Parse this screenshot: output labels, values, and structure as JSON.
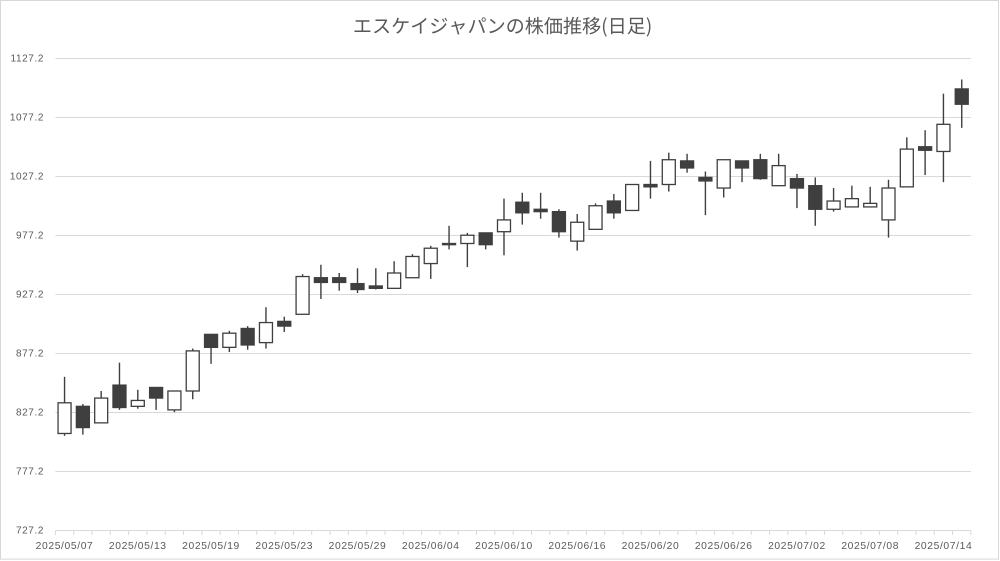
{
  "chart": {
    "title": "エスケイジャパンの株価推移(日足)"
  },
  "chart_data": {
    "type": "candlestick",
    "title": "エスケイジャパンの株価推移(日足)",
    "dates": [
      "2025/05/07",
      "2025/05/08",
      "2025/05/09",
      "2025/05/12",
      "2025/05/13",
      "2025/05/14",
      "2025/05/15",
      "2025/05/16",
      "2025/05/19",
      "2025/05/20",
      "2025/05/21",
      "2025/05/22",
      "2025/05/23",
      "2025/05/26",
      "2025/05/27",
      "2025/05/28",
      "2025/05/29",
      "2025/05/30",
      "2025/06/02",
      "2025/06/03",
      "2025/06/04",
      "2025/06/05",
      "2025/06/06",
      "2025/06/09",
      "2025/06/10",
      "2025/06/11",
      "2025/06/12",
      "2025/06/13",
      "2025/06/16",
      "2025/06/17",
      "2025/06/18",
      "2025/06/19",
      "2025/06/20",
      "2025/06/23",
      "2025/06/24",
      "2025/06/25",
      "2025/06/26",
      "2025/06/27",
      "2025/06/30",
      "2025/07/01",
      "2025/07/02",
      "2025/07/03",
      "2025/07/04",
      "2025/07/07",
      "2025/07/08",
      "2025/07/09",
      "2025/07/10",
      "2025/07/11",
      "2025/07/14",
      "2025/07/15"
    ],
    "open": [
      809,
      832,
      818,
      850,
      832,
      848,
      829,
      845,
      893,
      882,
      898,
      886,
      904,
      910,
      941,
      941,
      936,
      934,
      932,
      941,
      953,
      970,
      970,
      979,
      980,
      1005,
      999,
      997,
      972,
      982,
      1006,
      998,
      1020,
      1020,
      1040,
      1026,
      1017,
      1040,
      1041,
      1019,
      1025,
      1019,
      999,
      1001,
      1001,
      990,
      1018,
      1052,
      1048,
      1101
    ],
    "high": [
      857,
      834,
      845,
      869,
      846,
      848,
      845,
      881,
      893,
      896,
      900,
      916,
      908,
      944,
      952,
      945,
      949,
      949,
      955,
      961,
      968,
      985,
      979,
      979,
      1008,
      1013,
      1013,
      999,
      995,
      1004,
      1012,
      1020,
      1040,
      1047,
      1046,
      1031,
      1041,
      1040,
      1046,
      1046,
      1029,
      1026,
      1017,
      1019,
      1018,
      1024,
      1060,
      1066,
      1097,
      1109
    ],
    "low": [
      807,
      808,
      818,
      829,
      830,
      829,
      827,
      838,
      868,
      878,
      880,
      881,
      895,
      910,
      923,
      930,
      928,
      931,
      932,
      941,
      940,
      965,
      950,
      965,
      960,
      986,
      991,
      975,
      964,
      982,
      991,
      998,
      1008,
      1014,
      1030,
      994,
      1009,
      1022,
      1024,
      1019,
      1000,
      985,
      997,
      1001,
      1001,
      975,
      1018,
      1028,
      1022,
      1068
    ],
    "close": [
      835,
      814,
      839,
      831,
      837,
      839,
      845,
      879,
      882,
      894,
      884,
      903,
      900,
      942,
      937,
      937,
      931,
      932,
      945,
      959,
      966,
      969,
      977,
      969,
      990,
      996,
      997,
      980,
      988,
      1002,
      996,
      1020,
      1018,
      1041,
      1034,
      1023,
      1041,
      1034,
      1025,
      1036,
      1017,
      999,
      1006,
      1008,
      1004,
      1017,
      1050,
      1049,
      1071,
      1088
    ],
    "y_axis": {
      "min": 727.2,
      "max": 1127.2,
      "step": 50,
      "tick_labels": [
        "727.2",
        "777.2",
        "827.2",
        "877.2",
        "927.2",
        "977.2",
        "1027.2",
        "1077.2",
        "1127.2"
      ]
    },
    "x_axis": {
      "label_interval": 4,
      "tick_labels": [
        "2025/05/07",
        "2025/05/13",
        "2025/05/19",
        "2025/05/23",
        "2025/05/29",
        "2025/06/04",
        "2025/06/10",
        "2025/06/16",
        "2025/06/20",
        "2025/06/26",
        "2025/07/02",
        "2025/07/08",
        "2025/07/14"
      ]
    },
    "grid": true,
    "legend": "none",
    "colors": {
      "up_fill": "#FFFFFF",
      "down_fill": "#3F3F3F",
      "stroke": "#3F3F3F",
      "gridline": "#D9D9D9",
      "axis_line": "#D9D9D9",
      "label": "#595959",
      "title": "#595959",
      "chart_border": "#D7D7D7",
      "background": "#FFFFFF"
    }
  }
}
